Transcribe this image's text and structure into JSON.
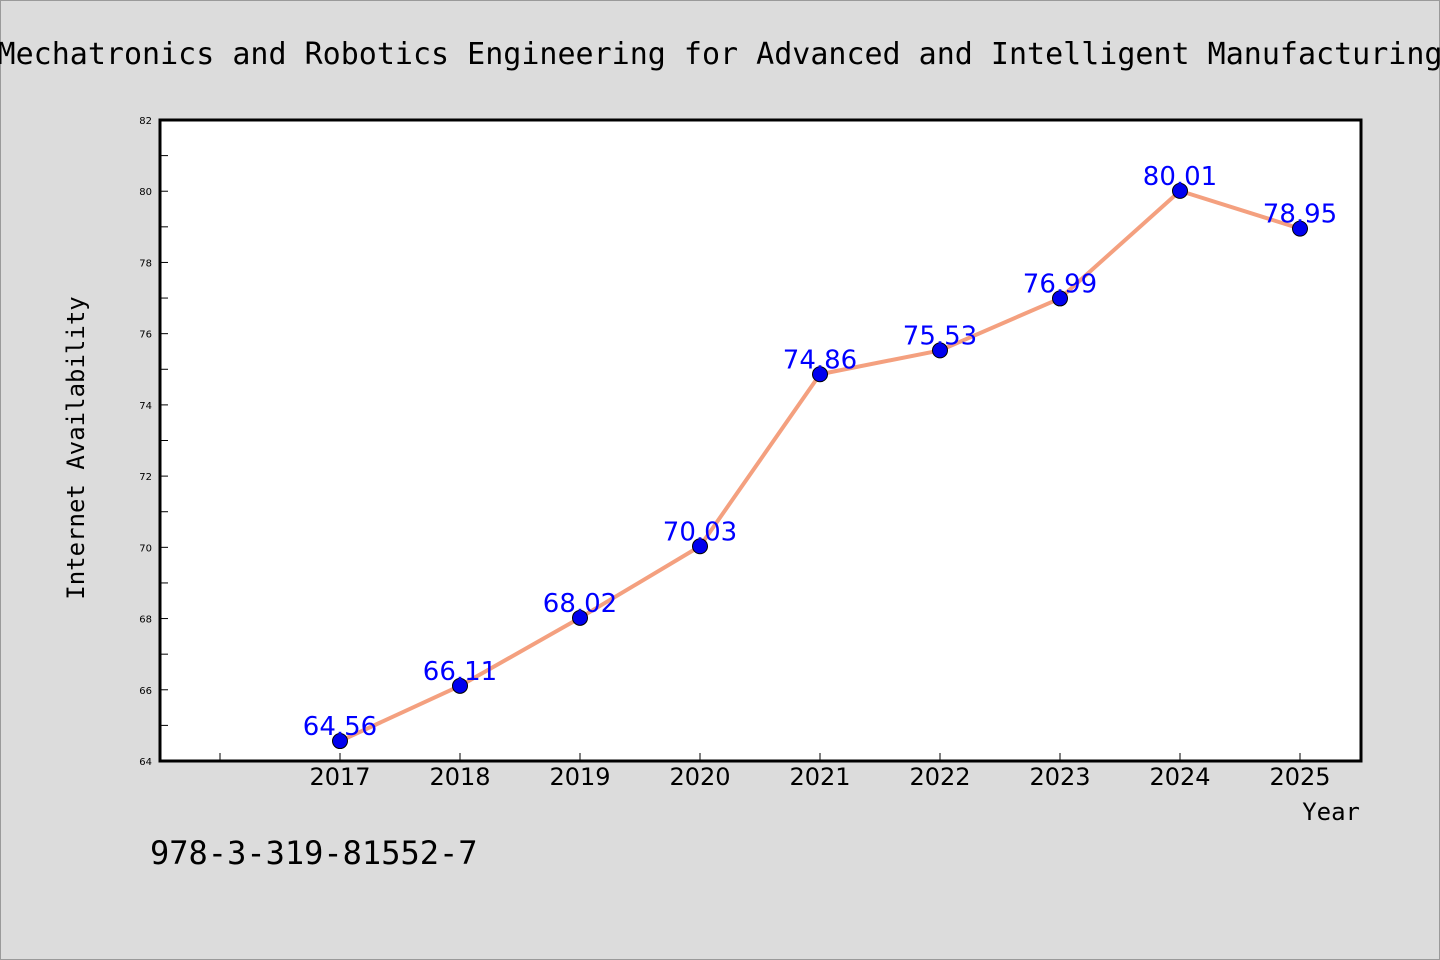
{
  "chart_data": {
    "type": "line",
    "title": "Mechatronics and Robotics Engineering for Advanced and Intelligent Manufacturing",
    "xlabel": "Year",
    "ylabel": "Internet Availability",
    "categories": [
      "2017",
      "2018",
      "2019",
      "2020",
      "2021",
      "2022",
      "2023",
      "2024",
      "2025"
    ],
    "series": [
      {
        "values": [
          64.56,
          66.11,
          68.02,
          70.03,
          74.86,
          75.53,
          76.99,
          80.01,
          78.95
        ],
        "data_labels": [
          "64.56",
          "66.11",
          "68.02",
          "70.03",
          "74.86",
          "75.53",
          "76.99",
          "80.01",
          "78.95"
        ],
        "line_color": "#f4a07f",
        "marker_color": "#0000ee"
      }
    ],
    "ylim": [
      64,
      82
    ],
    "yticks": [
      "64",
      "66",
      "68",
      "70",
      "72",
      "74",
      "76",
      "78",
      "80",
      "82"
    ],
    "grid": false,
    "legend": "none",
    "label_color": "#0000ff"
  },
  "footer_text": "978-3-319-81552-7"
}
